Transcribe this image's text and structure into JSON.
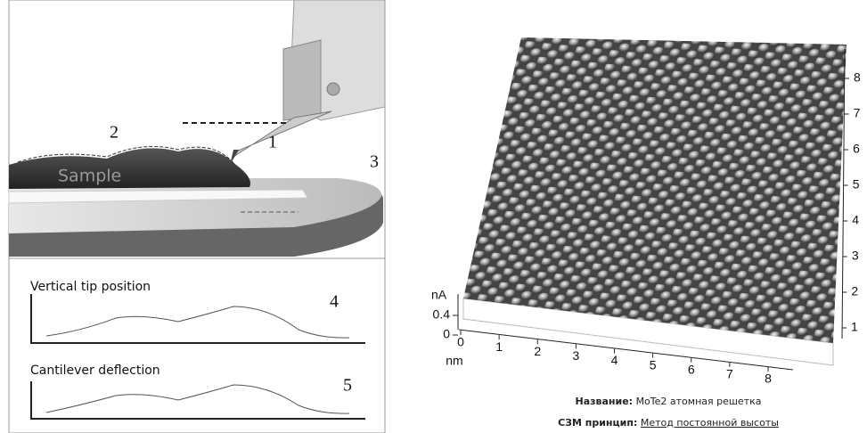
{
  "left_panel": {
    "labels": {
      "cantilever": "1",
      "surface": "2",
      "stage": "3"
    },
    "sample": "Sample",
    "plots": [
      {
        "title": "Vertical tip position",
        "number": "4"
      },
      {
        "title": "Cantilever deflection",
        "number": "5"
      }
    ]
  },
  "right_panel": {
    "z_unit": "nA",
    "z_ticks": [
      0.4,
      0
    ],
    "x_ticks": [
      0,
      1,
      2,
      3,
      4,
      5,
      6,
      7,
      8
    ],
    "x_unit": "nm",
    "y_ticks": [
      1,
      2,
      3,
      4,
      5,
      6,
      7,
      8
    ],
    "caption": [
      {
        "key": "Название:",
        "value": "MoTe2 атомная решетка"
      },
      {
        "key": "СЗМ принцип:",
        "value": "Метод постоянной высоты"
      }
    ]
  }
}
